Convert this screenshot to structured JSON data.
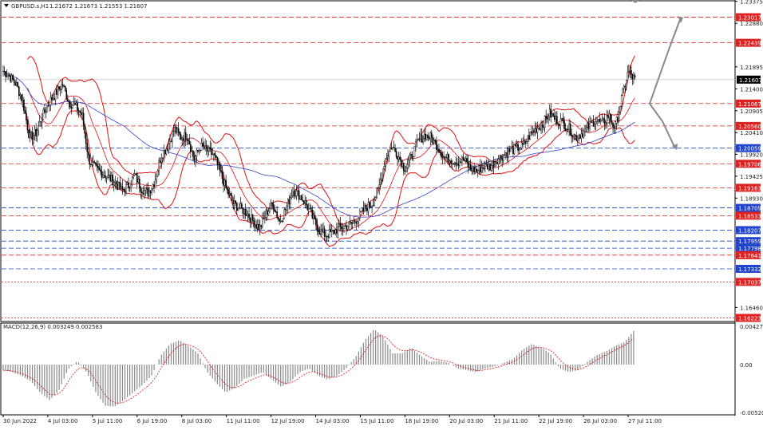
{
  "header": {
    "symbol": "GBPUSD.s,H1",
    "ohlc": "1.21672 1.21673 1.21553 1.21607"
  },
  "macd": {
    "label": "MACD(12,26,9) 0.003249 0.002583",
    "ticks": [
      "0.00427",
      "0.00",
      "-0.005202"
    ],
    "range": [
      -0.005202,
      0.00427
    ]
  },
  "colors": {
    "candle": "#000000",
    "bollinger": "#dd1111",
    "ma": "#3344cc",
    "resistance": "#dd2222",
    "support": "#2244cc",
    "current_price_bg": "#000000",
    "arrow": "#8a8a8a",
    "macd_signal": "#dd1111",
    "macd_hist": "#888888"
  },
  "chart_data": {
    "type": "candlestick",
    "symbol": "GBPUSD.s",
    "timeframe": "H1",
    "ylim": [
      1.1616,
      1.2337
    ],
    "price_ticks": [
      "1.23375",
      "1.22880",
      "1.21895",
      "1.21400",
      "1.20905",
      "1.20410",
      "1.19920",
      "1.19425",
      "1.18930",
      "1.16460"
    ],
    "current_price": "1.21607",
    "time_ticks": [
      "30 Jun 2022",
      "4 Jul 03:00",
      "5 Jul 11:00",
      "6 Jul 19:00",
      "8 Jul 03:00",
      "11 Jul 11:00",
      "12 Jul 19:00",
      "14 Jul 03:00",
      "15 Jul 11:00",
      "18 Jul 19:00",
      "20 Jul 03:00",
      "21 Jul 11:00",
      "22 Jul 19:00",
      "26 Jul 03:00",
      "27 Jul 11:00"
    ],
    "levels": [
      {
        "value": 1.23017,
        "label": "1.23017",
        "kind": "resistance",
        "dash": true
      },
      {
        "value": 1.22439,
        "label": "1.22439",
        "kind": "resistance",
        "dash": true
      },
      {
        "value": 1.21067,
        "label": "1.21067",
        "kind": "resistance",
        "dash": true
      },
      {
        "value": 1.2056,
        "label": "1.20560",
        "kind": "resistance",
        "dash": true
      },
      {
        "value": 1.20059,
        "label": "1.20059",
        "kind": "support",
        "dash": true
      },
      {
        "value": 1.19706,
        "label": "1.19706",
        "kind": "resistance",
        "dash": true
      },
      {
        "value": 1.19163,
        "label": "1.19163",
        "kind": "resistance",
        "dash": true
      },
      {
        "value": 1.18709,
        "label": "1.18709",
        "kind": "support",
        "dash": true
      },
      {
        "value": 1.18533,
        "label": "1.18533",
        "kind": "resistance",
        "dash": true
      },
      {
        "value": 1.18207,
        "label": "1.18207",
        "kind": "support",
        "dash": true
      },
      {
        "value": 1.17959,
        "label": "1.17959",
        "kind": "support",
        "dash": true
      },
      {
        "value": 1.17798,
        "label": "1.17798",
        "kind": "support",
        "dash": true
      },
      {
        "value": 1.17641,
        "label": "1.17641",
        "kind": "resistance",
        "dash": true
      },
      {
        "value": 1.17332,
        "label": "1.17332",
        "kind": "support",
        "dash": true
      },
      {
        "value": 1.17037,
        "label": "1.17037",
        "kind": "resistance",
        "dash": false
      },
      {
        "value": 1.16223,
        "label": "1.16223",
        "kind": "resistance",
        "dash": false
      }
    ],
    "close_path": [
      1.218,
      1.2168,
      1.215,
      1.211,
      1.203,
      1.204,
      1.208,
      1.211,
      1.213,
      1.215,
      1.211,
      1.21,
      1.208,
      1.198,
      1.196,
      1.195,
      1.194,
      1.193,
      1.191,
      1.192,
      1.1945,
      1.1915,
      1.1905,
      1.193,
      1.199,
      1.201,
      1.205,
      1.203,
      1.2035,
      1.198,
      1.201,
      1.2,
      1.199,
      1.195,
      1.191,
      1.188,
      1.187,
      1.186,
      1.184,
      1.1825,
      1.186,
      1.188,
      1.184,
      1.187,
      1.191,
      1.19,
      1.188,
      1.185,
      1.182,
      1.181,
      1.1815,
      1.1825,
      1.183,
      1.1835,
      1.185,
      1.187,
      1.188,
      1.191,
      1.198,
      1.201,
      1.199,
      1.196,
      1.1985,
      1.202,
      1.2035,
      1.203,
      1.201,
      1.1985,
      1.198,
      1.1975,
      1.198,
      1.196,
      1.1955,
      1.1965,
      1.1965,
      1.198,
      1.199,
      1.2,
      1.2005,
      1.201,
      1.2035,
      1.205,
      1.206,
      1.2085,
      1.207,
      1.2065,
      1.205,
      1.203,
      1.204,
      1.2055,
      1.207,
      1.206,
      1.208,
      1.205,
      1.212,
      1.218,
      1.216
    ],
    "macd_hist": [
      -0.0006,
      -0.0008,
      -0.0012,
      -0.0018,
      -0.003,
      -0.0038,
      -0.0028,
      -0.0005,
      0.0004,
      -0.0008,
      -0.003,
      -0.0044,
      -0.0045,
      -0.0038,
      -0.003,
      -0.0022,
      -0.0012,
      0.001,
      0.0022,
      0.0026,
      0.002,
      0.0012,
      -0.0008,
      -0.002,
      -0.003,
      -0.0025,
      -0.0015,
      -0.0012,
      -0.0008,
      -0.0016,
      -0.0024,
      -0.0018,
      -0.0008,
      -0.0004,
      -0.0012,
      -0.0016,
      -0.0012,
      -0.0004,
      0.0008,
      0.0026,
      0.0038,
      0.003,
      0.0012,
      0.0012,
      0.0018,
      0.001,
      0.0003,
      0.0004,
      0.0002,
      -0.0004,
      -0.0006,
      -0.0008,
      -0.0004,
      -0.0002,
      0.0002,
      0.0006,
      0.0016,
      0.0022,
      0.0018,
      0.0012,
      -0.0004,
      -0.0008,
      -0.0006,
      0.0003,
      0.001,
      0.0014,
      0.002,
      0.0024,
      0.0036
    ]
  }
}
